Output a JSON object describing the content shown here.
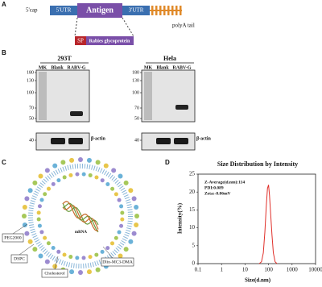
{
  "panel_a": {
    "label": "A",
    "cap": "5'cap",
    "utr5": "5'UTR",
    "antigen": "Antigen",
    "utr3": "3'UTR",
    "polya": "polyA tail",
    "sp": "SP",
    "protein": "Rabies glycoprotein"
  },
  "panel_b": {
    "label": "B",
    "blots": [
      {
        "title": "293T",
        "lanes": [
          "MK",
          "Blank",
          "RABV-G"
        ],
        "markers": [
          "180",
          "130",
          "100",
          "70",
          "50",
          "40"
        ],
        "loading": "β-actin"
      },
      {
        "title": "Hela",
        "lanes": [
          "MK",
          "Blank",
          "RABV-G"
        ],
        "markers": [
          "180",
          "130",
          "100",
          "70",
          "50",
          "40"
        ],
        "loading": "β-actin"
      }
    ]
  },
  "panel_c": {
    "label": "C",
    "mrna": "mRNA",
    "components": [
      "PEG2000",
      "DSPC",
      "Cholesterol",
      "Dlin-MC3-DMA"
    ]
  },
  "chart_data": {
    "type": "line",
    "panel_label": "D",
    "title": "Size Distribution by Intensity",
    "annotations": [
      "Z-Average(d.nm):114",
      "PDI:0.089",
      "Zeta:-8.86mV"
    ],
    "x_label": "Size(d.nm)",
    "y_label": "Intensity(%)",
    "log_x": true,
    "x": [
      40,
      50,
      60,
      70,
      80,
      90,
      100,
      110,
      120,
      140,
      160,
      190,
      230
    ],
    "series": [
      {
        "color": "#e0302a",
        "values": [
          0,
          0.5,
          3,
          9,
          16,
          21,
          22,
          19,
          15,
          8,
          3,
          0.5,
          0
        ]
      }
    ],
    "xlim": [
      0.1,
      10000
    ],
    "xticks": [
      0.1,
      1,
      10,
      100,
      1000,
      10000
    ],
    "ylim": [
      0,
      25
    ],
    "yticks": [
      0,
      5,
      10,
      15,
      20,
      25
    ]
  }
}
